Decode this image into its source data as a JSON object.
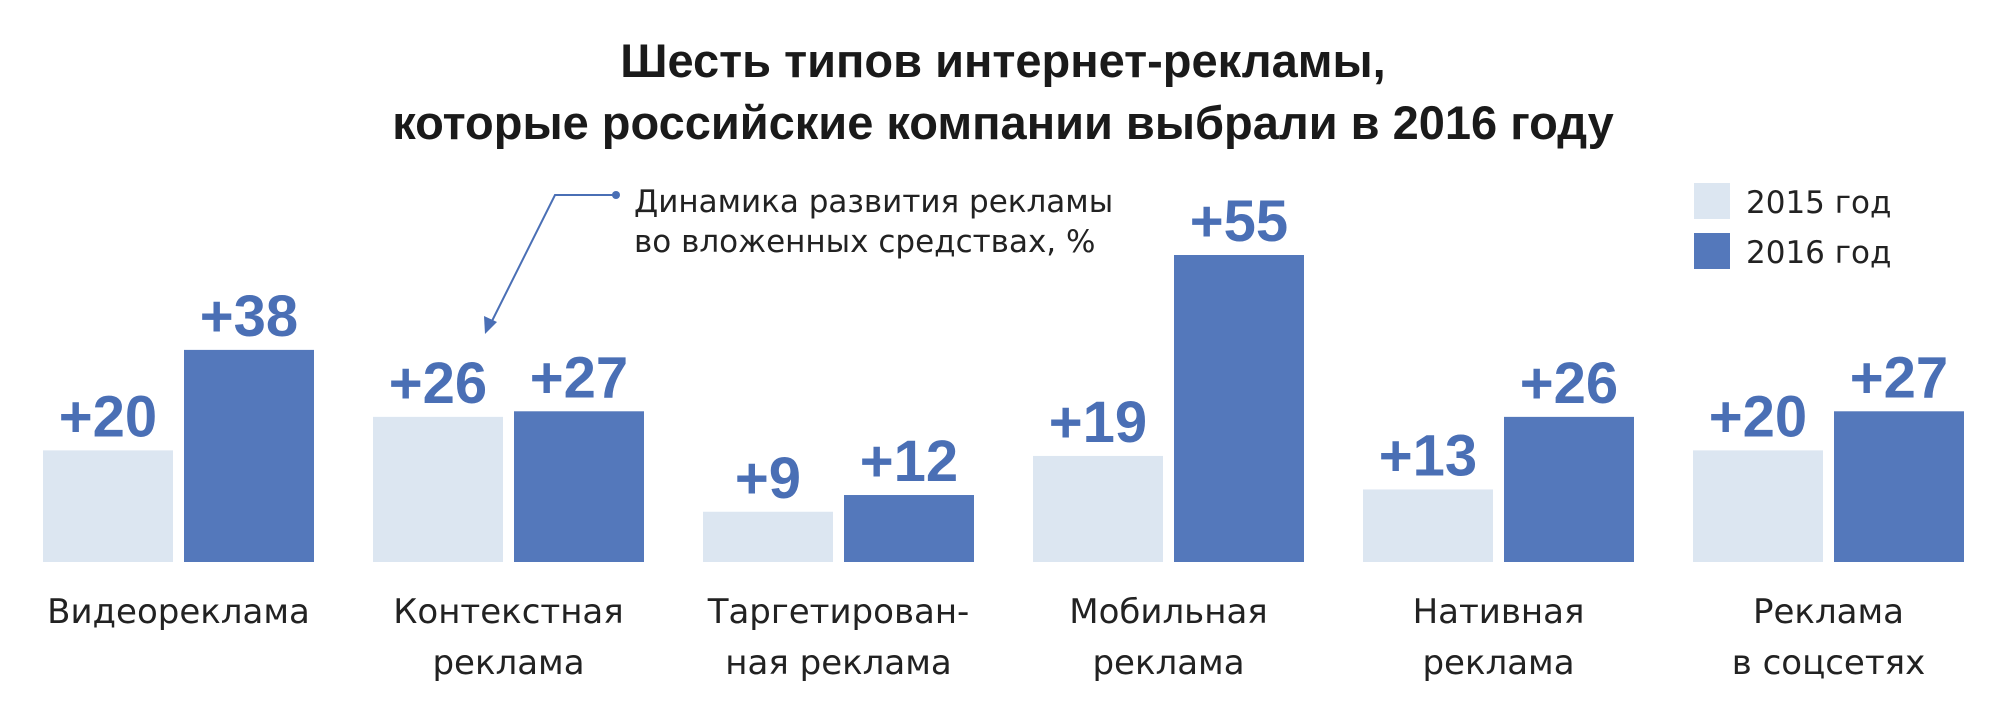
{
  "chart_data": {
    "type": "bar",
    "title": [
      "Шесть типов интернет-рекламы,",
      "которые российские компании выбрали в 2016 году"
    ],
    "categories": [
      [
        "Видеореклама"
      ],
      [
        "Контекстная",
        "реклама"
      ],
      [
        "Таргетирован-",
        "ная реклама"
      ],
      [
        "Мобильная",
        "реклама"
      ],
      [
        "Нативная",
        "реклама"
      ],
      [
        "Реклама",
        "в соцсетях"
      ]
    ],
    "series": [
      {
        "name": "2015 год",
        "color": "#dce6f1",
        "values": [
          20,
          26,
          9,
          19,
          13,
          20
        ],
        "labels": [
          "+20",
          "+26",
          "+9",
          "+19",
          "+13",
          "+20"
        ]
      },
      {
        "name": "2016 год",
        "color": "#5478bb",
        "values": [
          38,
          27,
          12,
          55,
          26,
          27
        ],
        "labels": [
          "+38",
          "+27",
          "+12",
          "+55",
          "+26",
          "+27"
        ]
      }
    ],
    "ylim": [
      0,
      55
    ],
    "annotation": [
      "Динамика развития рекламы",
      "во вложенных средствах, %"
    ],
    "legend_position": "top-right",
    "value_label_color": "#4a6fb5",
    "annotation_color": "#4a6fb5"
  }
}
